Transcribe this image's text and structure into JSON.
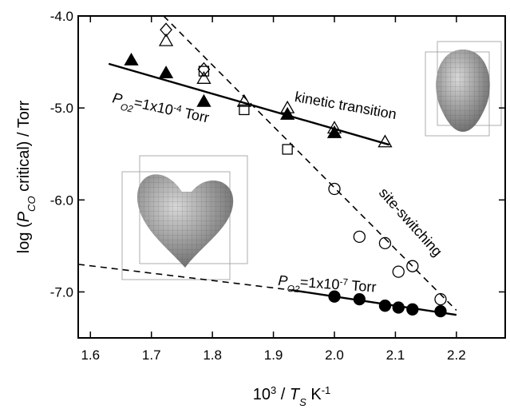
{
  "chart_data": {
    "type": "scatter",
    "xlim": [
      1.58,
      2.28
    ],
    "ylim": [
      -7.5,
      -4.0
    ],
    "xticks": [
      1.6,
      1.7,
      1.8,
      1.9,
      {
        "value": 2.0,
        "label": "2.0"
      },
      2.1,
      2.2
    ],
    "yticks": [
      {
        "value": -4.0,
        "label": "-4.0"
      },
      {
        "value": -5.0,
        "label": "-5.0"
      },
      {
        "value": -6.0,
        "label": "-6.0"
      },
      {
        "value": -7.0,
        "label": "-7.0"
      }
    ],
    "x_label": [
      {
        "text": "10",
        "style": "normal"
      },
      {
        "text": "3",
        "style": "sup"
      },
      {
        "text": " / ",
        "style": "normal"
      },
      {
        "text": "T",
        "style": "italic"
      },
      {
        "text": "S",
        "style": "sub"
      },
      {
        "text": "  K",
        "style": "normal"
      },
      {
        "text": "-1",
        "style": "sup"
      }
    ],
    "y_label": [
      {
        "text": "log (",
        "style": "normal"
      },
      {
        "text": "P",
        "style": "italic"
      },
      {
        "text": "CO",
        "style": "sub"
      },
      {
        "text": " critical) / Torr",
        "style": "normal"
      }
    ],
    "annotations": [
      {
        "parts": [
          {
            "text": "kinetic transition",
            "style": "normal"
          }
        ]
      },
      {
        "parts": [
          {
            "text": "site-switching",
            "style": "normal"
          }
        ]
      },
      {
        "parts": [
          {
            "text": "P",
            "style": "italic"
          },
          {
            "text": "O2",
            "style": "sub"
          },
          {
            "text": "=1x10",
            "style": "normal"
          },
          {
            "text": "-4",
            "style": "sup"
          },
          {
            "text": " Torr",
            "style": "normal"
          }
        ]
      },
      {
        "parts": [
          {
            "text": "P",
            "style": "italic"
          },
          {
            "text": "O2",
            "style": "sub"
          },
          {
            "text": "=1x10",
            "style": "normal"
          },
          {
            "text": "-7",
            "style": "sup"
          },
          {
            "text": " Torr",
            "style": "normal"
          }
        ]
      }
    ],
    "series": [
      {
        "marker": "triangle",
        "filled": true,
        "color": "#000000",
        "x": [
          1.667,
          1.724,
          1.786,
          1.923,
          2.0
        ],
        "values": [
          -4.48,
          -4.62,
          -4.93,
          -5.07,
          -5.27
        ]
      },
      {
        "marker": "triangle",
        "filled": false,
        "color": "#000000",
        "x": [
          1.724,
          1.786,
          1.852,
          1.923,
          2.0,
          2.083
        ],
        "values": [
          -4.27,
          -4.68,
          -4.93,
          -5.0,
          -5.22,
          -5.37
        ]
      },
      {
        "marker": "diamond",
        "filled": false,
        "color": "#000000",
        "x": [
          1.724,
          1.786
        ],
        "values": [
          -4.15,
          -4.58
        ]
      },
      {
        "marker": "square",
        "filled": false,
        "color": "#000000",
        "x": [
          1.786,
          1.852,
          1.923
        ],
        "values": [
          -4.6,
          -5.02,
          -5.45
        ]
      },
      {
        "marker": "circle",
        "filled": false,
        "color": "#000000",
        "x": [
          2.0,
          2.041,
          2.083,
          2.105,
          2.128,
          2.174
        ],
        "values": [
          -5.88,
          -6.4,
          -6.47,
          -6.78,
          -6.72,
          -7.08
        ]
      },
      {
        "marker": "circle",
        "filled": true,
        "color": "#000000",
        "x": [
          2.0,
          2.041,
          2.083,
          2.105,
          2.128,
          2.174
        ],
        "values": [
          -7.05,
          -7.08,
          -7.15,
          -7.17,
          -7.19,
          -7.21
        ]
      }
    ],
    "fit_lines": [
      {
        "dash": false,
        "x": [
          1.63,
          2.09
        ],
        "values": [
          -4.52,
          -5.4
        ]
      },
      {
        "dash": true,
        "x": [
          1.72,
          2.2
        ],
        "values": [
          -4.0,
          -7.2
        ]
      },
      {
        "dash": true,
        "x": [
          1.58,
          1.93
        ],
        "values": [
          -6.7,
          -6.98
        ]
      },
      {
        "dash": false,
        "x": [
          1.93,
          2.2
        ],
        "values": [
          -6.98,
          -7.25
        ]
      }
    ]
  }
}
